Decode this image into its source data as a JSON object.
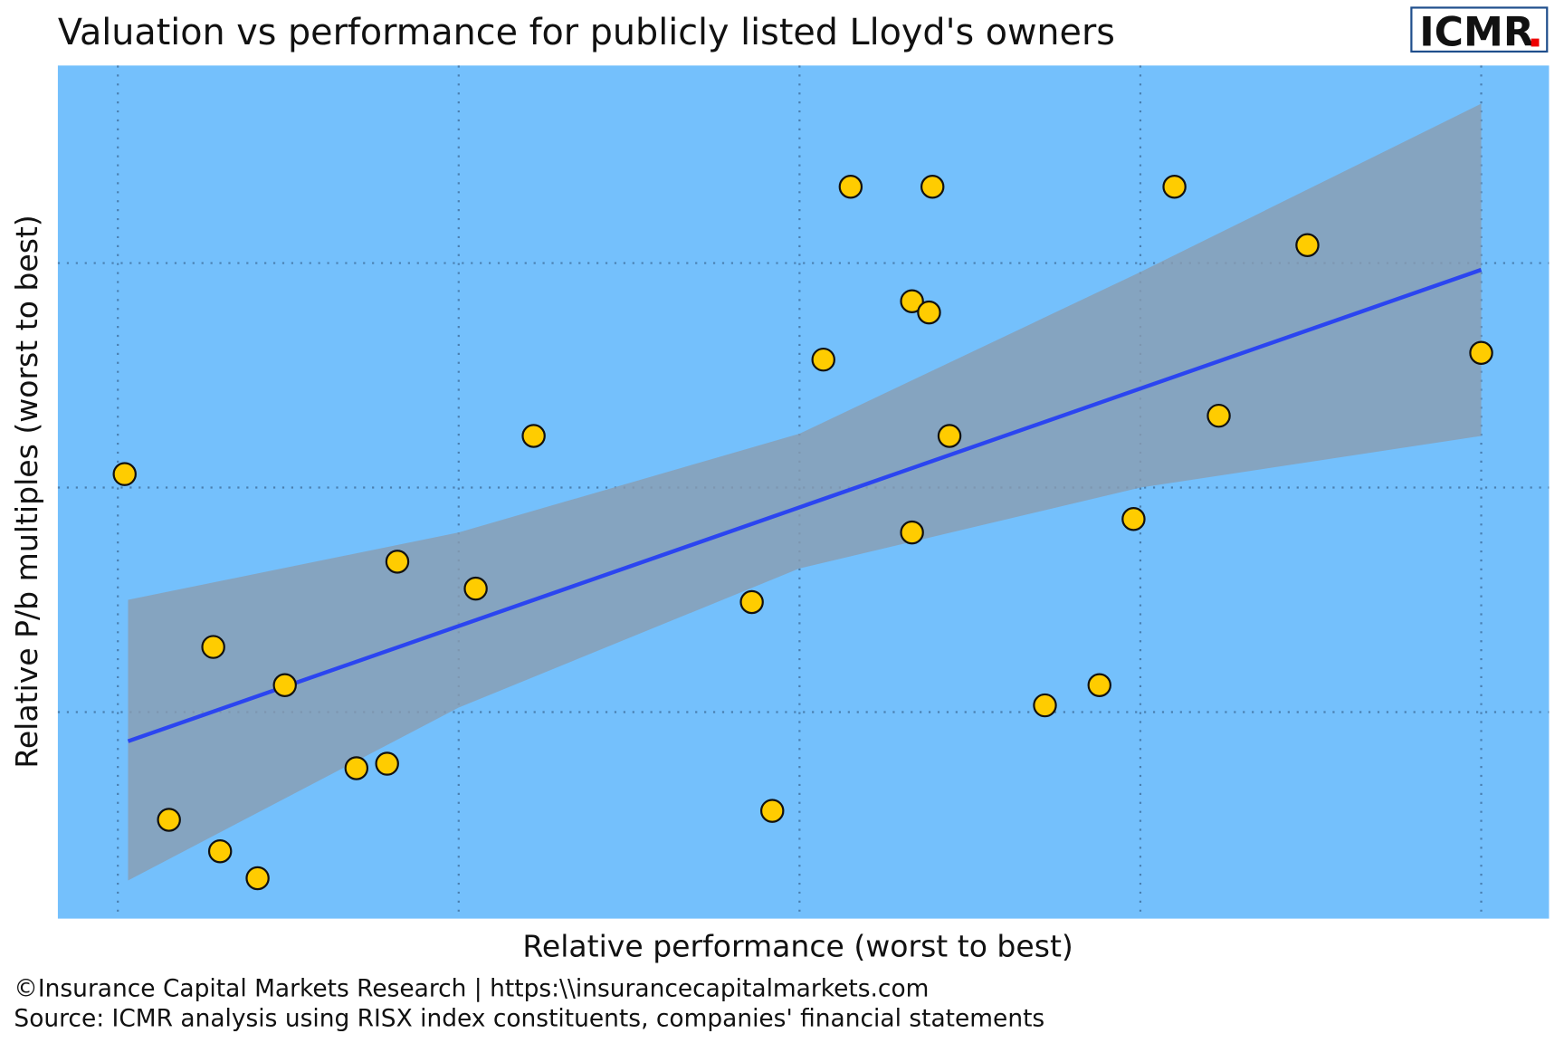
{
  "chart_data": {
    "type": "scatter",
    "title": "Valuation vs performance for publicly listed Lloyd's owners",
    "logo": "ICMR",
    "x_label": "Relative performance (worst to best)",
    "y_label": "Relative P/b multiples (worst to best)",
    "footer": [
      "©Insurance Capital Markets Research | https:\\\\insurancecapitalmarkets.com",
      "Source: ICMR analysis using RISX index constituents, companies' financial statements"
    ],
    "x": [
      0.02,
      0.15,
      0.28,
      0.3,
      0.41,
      0.49,
      0.7,
      0.79,
      0.82,
      1.05,
      1.22,
      1.86,
      1.92,
      2.07,
      2.15,
      2.33,
      2.33,
      2.38,
      2.39,
      2.44,
      2.72,
      2.88,
      2.98,
      3.1,
      3.23,
      3.49,
      4.0
    ],
    "values": [
      2.06,
      0.52,
      1.29,
      0.38,
      0.26,
      1.12,
      0.75,
      0.77,
      1.67,
      1.55,
      2.23,
      1.49,
      0.56,
      2.57,
      3.34,
      2.83,
      1.8,
      2.78,
      3.34,
      2.23,
      1.03,
      1.12,
      1.86,
      3.34,
      2.32,
      3.08,
      2.6
    ],
    "color": "#ffcc00",
    "trend": {
      "x": [
        0.03,
        4.0
      ],
      "values": [
        0.87,
        2.97
      ],
      "color": "#2b45f0"
    },
    "band": {
      "x": [
        0.03,
        1,
        2,
        3,
        4
      ],
      "upper": [
        1.5,
        1.8,
        2.24,
        2.96,
        3.71
      ],
      "lower": [
        0.25,
        1.02,
        1.64,
        2.0,
        2.23
      ],
      "color": "#8a9cb0"
    },
    "xlim": [
      -0.176,
      4.199
    ],
    "ylim": [
      0.08,
      3.88
    ],
    "xgrid": [
      0,
      1,
      2,
      3,
      4
    ],
    "ygrid": [
      1,
      2,
      3
    ],
    "background": "#74c0fc"
  }
}
